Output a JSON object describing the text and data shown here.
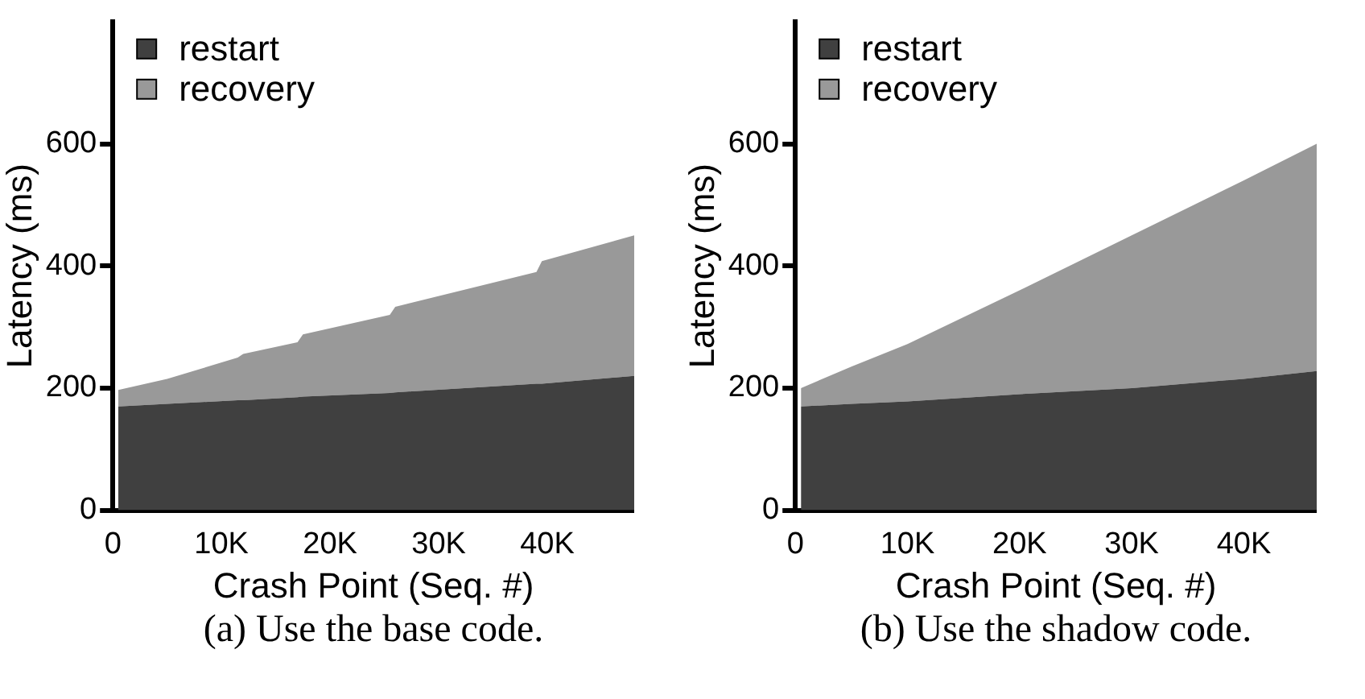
{
  "chart_data": [
    {
      "type": "area",
      "stacked": true,
      "xlabel": "Crash Point (Seq. #)",
      "ylabel": "Latency (ms)",
      "annotations": [
        "(a) Use the base code."
      ],
      "legend": "top left",
      "grid": false,
      "xlim": [
        0,
        48000
      ],
      "ylim": [
        0,
        800
      ],
      "xticks": [
        0,
        {
          "value": 10000,
          "label": "10K"
        },
        {
          "value": 20000,
          "label": "20K"
        },
        {
          "value": 30000,
          "label": "30K"
        },
        {
          "value": 40000,
          "label": "40K"
        }
      ],
      "yticks": [
        0,
        200,
        400,
        600
      ],
      "x": [
        500,
        5000,
        11500,
        12000,
        17000,
        17500,
        25500,
        26000,
        39000,
        39500,
        48000
      ],
      "series": [
        {
          "name": "restart",
          "color": "#404040",
          "values": [
            170,
            174,
            180,
            180,
            185,
            186,
            192,
            193,
            207,
            207,
            220
          ]
        },
        {
          "name": "recovery",
          "color": "#999999",
          "values": [
            27,
            41,
            70,
            76,
            90,
            102,
            128,
            140,
            183,
            201,
            230
          ]
        }
      ]
    },
    {
      "type": "area",
      "stacked": true,
      "xlabel": "Crash Point (Seq. #)",
      "ylabel": "Latency (ms)",
      "annotations": [
        "(b) Use the shadow code."
      ],
      "legend": "top left",
      "grid": false,
      "xlim": [
        0,
        46500
      ],
      "ylim": [
        0,
        800
      ],
      "xticks": [
        0,
        {
          "value": 10000,
          "label": "10K"
        },
        {
          "value": 20000,
          "label": "20K"
        },
        {
          "value": 30000,
          "label": "30K"
        },
        {
          "value": 40000,
          "label": "40K"
        }
      ],
      "yticks": [
        0,
        200,
        400,
        600
      ],
      "x": [
        500,
        5000,
        10000,
        20000,
        30000,
        40000,
        46500
      ],
      "series": [
        {
          "name": "restart",
          "color": "#404040",
          "values": [
            170,
            174,
            178,
            190,
            200,
            215,
            228
          ]
        },
        {
          "name": "recovery",
          "color": "#999999",
          "values": [
            30,
            61,
            94,
            170,
            250,
            325,
            372
          ]
        }
      ]
    }
  ]
}
